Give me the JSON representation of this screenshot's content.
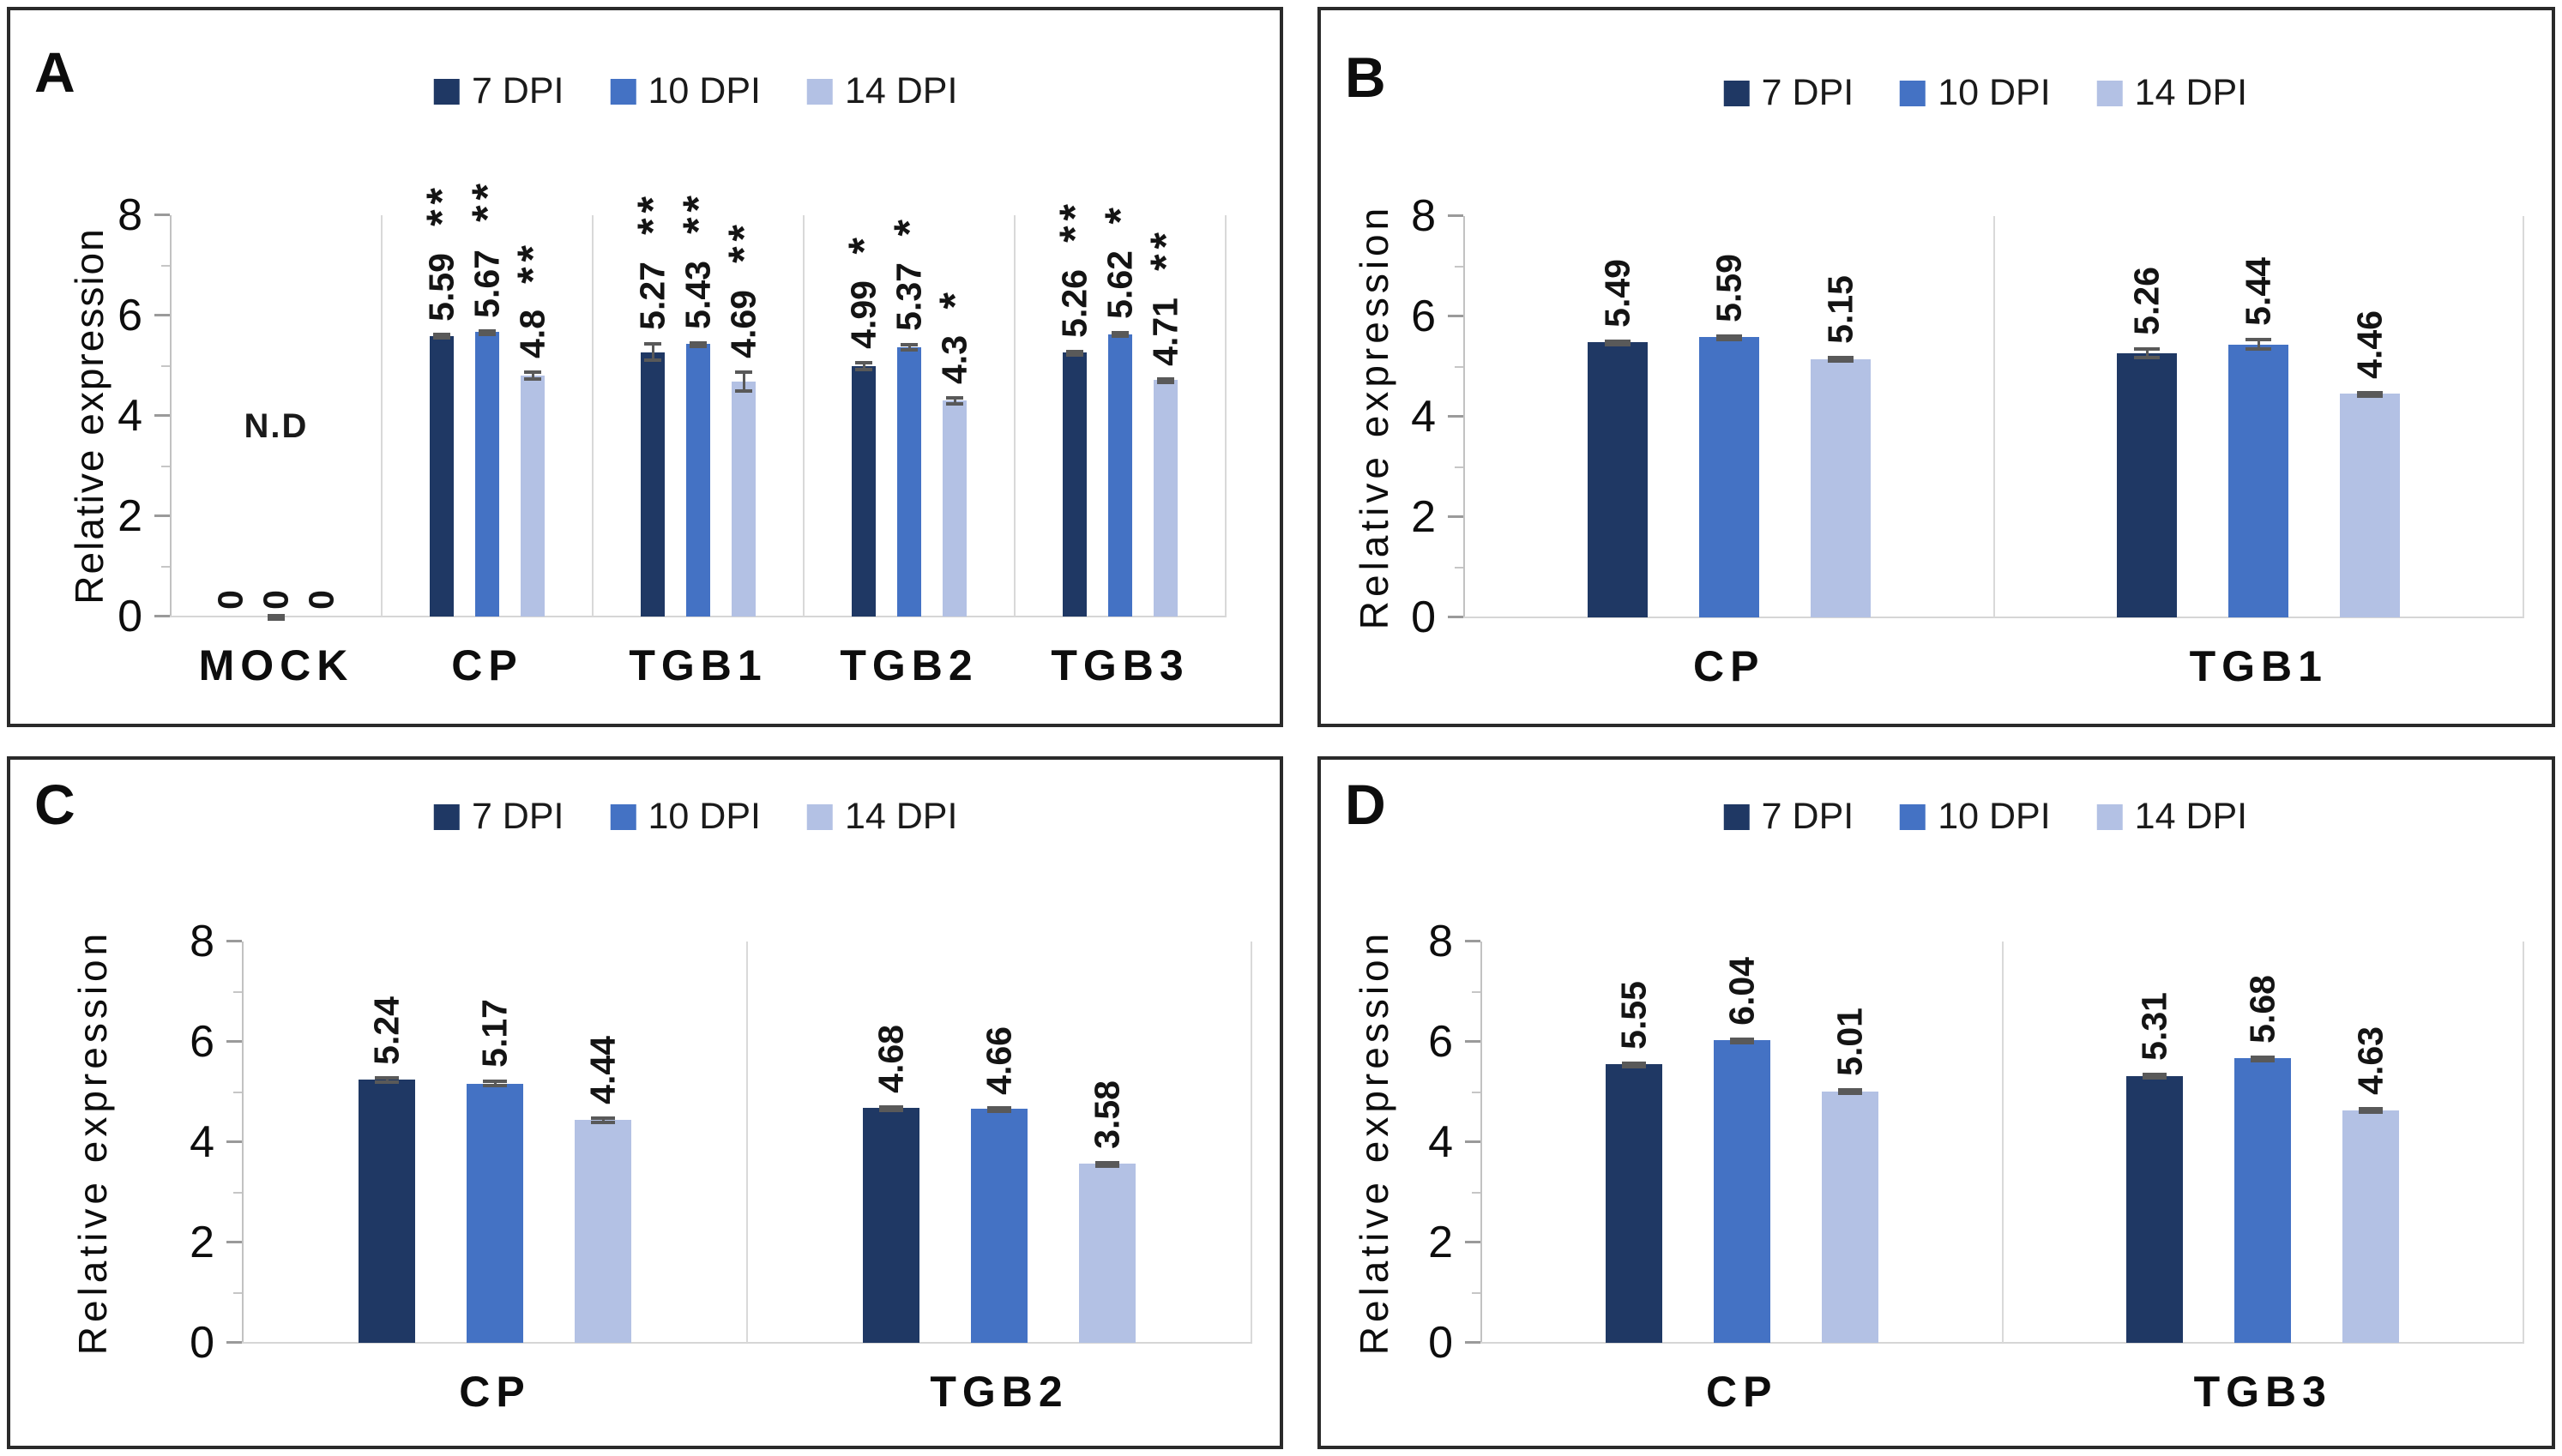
{
  "page": {
    "background": "#ffffff"
  },
  "colors": {
    "series": [
      "#1F3864",
      "#4472C4",
      "#B3C1E4"
    ],
    "error_bar": "#595959",
    "axis_line": "#C2C2C2",
    "separator": "#D9D9D9",
    "baseline": "#D6D6D6",
    "text": "#111111",
    "panel_border": "#2A2A2A"
  },
  "legend": {
    "position": "top",
    "entries": [
      {
        "label": "7 DPI",
        "color": "#1F3864"
      },
      {
        "label": "10 DPI",
        "color": "#4472C4"
      },
      {
        "label": "14 DPI",
        "color": "#B3C1E4"
      }
    ]
  },
  "chart_data": [
    {
      "panel_letter": "A",
      "type": "bar",
      "ylabel": "Relative expression",
      "ylim": [
        0,
        8
      ],
      "yticks": [
        0,
        2,
        4,
        6,
        8
      ],
      "grid": false,
      "legend_position": "top",
      "categories": [
        "MOCK",
        "CP",
        "TGB1",
        "TGB2",
        "TGB3"
      ],
      "series": [
        {
          "name": "7 DPI",
          "color": "#1F3864",
          "values": [
            0,
            5.59,
            5.27,
            4.99,
            5.26
          ],
          "labels": [
            "0",
            "5.59",
            "5.27",
            "4.99",
            "5.26"
          ],
          "errors": [
            0,
            0.06,
            0.2,
            0.1,
            0.05
          ],
          "sig": [
            "",
            "**",
            "**",
            "*",
            "**"
          ]
        },
        {
          "name": "10 DPI",
          "color": "#4472C4",
          "values": [
            0,
            5.67,
            5.43,
            5.37,
            5.62
          ],
          "labels": [
            "0",
            "5.67",
            "5.43",
            "5.37",
            "5.62"
          ],
          "errors": [
            0.05,
            0.05,
            0.06,
            0.08,
            0.07
          ],
          "sig": [
            "",
            "**",
            "**",
            "*",
            "*"
          ]
        },
        {
          "name": "14 DPI",
          "color": "#B3C1E4",
          "values": [
            0,
            4.8,
            4.69,
            4.3,
            4.71
          ],
          "labels": [
            "0",
            "4.8",
            "4.69",
            "4.3",
            "4.71"
          ],
          "errors": [
            0,
            0.1,
            0.22,
            0.1,
            0.05
          ],
          "sig": [
            "",
            "**",
            "**",
            "*",
            "**"
          ]
        }
      ],
      "annotation": {
        "text": "N.D",
        "category_index": 0,
        "y": 3.4
      }
    },
    {
      "panel_letter": "B",
      "type": "bar",
      "ylabel": "Relative expression",
      "ylim": [
        0,
        8
      ],
      "yticks": [
        0,
        2,
        4,
        6,
        8
      ],
      "grid": false,
      "legend_position": "top",
      "categories": [
        "CP",
        "TGB1"
      ],
      "series": [
        {
          "name": "7 DPI",
          "color": "#1F3864",
          "values": [
            5.49,
            5.26
          ],
          "labels": [
            "5.49",
            "5.26"
          ],
          "errors": [
            0.05,
            0.12
          ],
          "sig": [
            "",
            ""
          ]
        },
        {
          "name": "10 DPI",
          "color": "#4472C4",
          "values": [
            5.59,
            5.44
          ],
          "labels": [
            "5.59",
            "5.44"
          ],
          "errors": [
            0.05,
            0.13
          ],
          "sig": [
            "",
            ""
          ]
        },
        {
          "name": "14 DPI",
          "color": "#B3C1E4",
          "values": [
            5.15,
            4.46
          ],
          "labels": [
            "5.15",
            "4.46"
          ],
          "errors": [
            0.06,
            0.04
          ],
          "sig": [
            "",
            ""
          ]
        }
      ],
      "annotation": null
    },
    {
      "panel_letter": "C",
      "type": "bar",
      "ylabel": "Relative expression",
      "ylim": [
        0,
        8
      ],
      "yticks": [
        0,
        2,
        4,
        6,
        8
      ],
      "grid": false,
      "legend_position": "top",
      "categories": [
        "CP",
        "TGB2"
      ],
      "series": [
        {
          "name": "7 DPI",
          "color": "#1F3864",
          "values": [
            5.24,
            4.68
          ],
          "labels": [
            "5.24",
            "4.68"
          ],
          "errors": [
            0.07,
            0.04
          ],
          "sig": [
            "",
            ""
          ]
        },
        {
          "name": "10 DPI",
          "color": "#4472C4",
          "values": [
            5.17,
            4.66
          ],
          "labels": [
            "5.17",
            "4.66"
          ],
          "errors": [
            0.08,
            0.04
          ],
          "sig": [
            "",
            ""
          ]
        },
        {
          "name": "14 DPI",
          "color": "#B3C1E4",
          "values": [
            4.44,
            3.58
          ],
          "labels": [
            "4.44",
            "3.58"
          ],
          "errors": [
            0.08,
            0.04
          ],
          "sig": [
            "",
            ""
          ]
        }
      ],
      "annotation": null
    },
    {
      "panel_letter": "D",
      "type": "bar",
      "ylabel": "Relative expression",
      "ylim": [
        0,
        8
      ],
      "yticks": [
        0,
        2,
        4,
        6,
        8
      ],
      "grid": false,
      "legend_position": "top",
      "categories": [
        "CP",
        "TGB3"
      ],
      "series": [
        {
          "name": "7 DPI",
          "color": "#1F3864",
          "values": [
            5.55,
            5.31
          ],
          "labels": [
            "5.55",
            "5.31"
          ],
          "errors": [
            0.06,
            0.07
          ],
          "sig": [
            "",
            ""
          ]
        },
        {
          "name": "10 DPI",
          "color": "#4472C4",
          "values": [
            6.04,
            5.68
          ],
          "labels": [
            "6.04",
            "5.68"
          ],
          "errors": [
            0.04,
            0.05
          ],
          "sig": [
            "",
            ""
          ]
        },
        {
          "name": "14 DPI",
          "color": "#B3C1E4",
          "values": [
            5.01,
            4.63
          ],
          "labels": [
            "5.01",
            "4.63"
          ],
          "errors": [
            0.07,
            0.07
          ],
          "sig": [
            "",
            ""
          ]
        }
      ],
      "annotation": null
    }
  ]
}
